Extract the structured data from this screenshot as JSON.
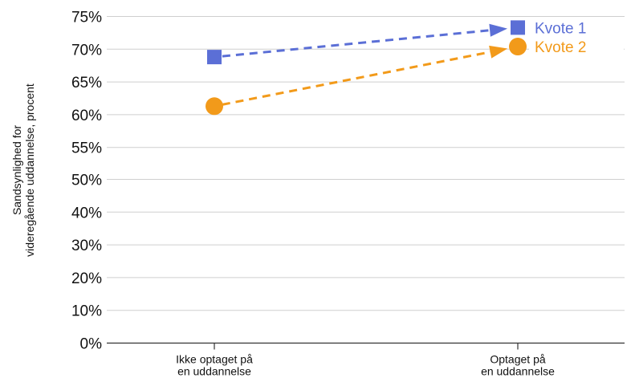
{
  "chart_data": {
    "type": "line",
    "title": "",
    "xlabel": "",
    "ylabel": [
      "Sandsynlighed for",
      "videregående uddannelse, procent"
    ],
    "categories": [
      [
        "Ikke optaget på",
        "en uddannelse"
      ],
      [
        "Optaget på",
        "en uddannelse"
      ]
    ],
    "ylim": [
      0,
      75
    ],
    "yticks": [
      0,
      10,
      20,
      30,
      40,
      50,
      55,
      60,
      65,
      70,
      75
    ],
    "ytick_labels": [
      "0%",
      "10%",
      "20%",
      "30%",
      "40%",
      "50%",
      "55%",
      "60%",
      "65%",
      "70%",
      "75%"
    ],
    "grid": true,
    "legend": "end-of-lines",
    "series": [
      {
        "name": "Kvote 1",
        "values": [
          68.8,
          73.3
        ],
        "color": "#5b6fd6",
        "marker": "square",
        "line": "dashed"
      },
      {
        "name": "Kvote 2",
        "values": [
          61.3,
          70.4
        ],
        "color": "#f29a1a",
        "marker": "circle",
        "line": "dashed"
      }
    ]
  },
  "colors": {
    "grid": "#cfcfcf",
    "axis": "#333333",
    "text": "#111111"
  }
}
